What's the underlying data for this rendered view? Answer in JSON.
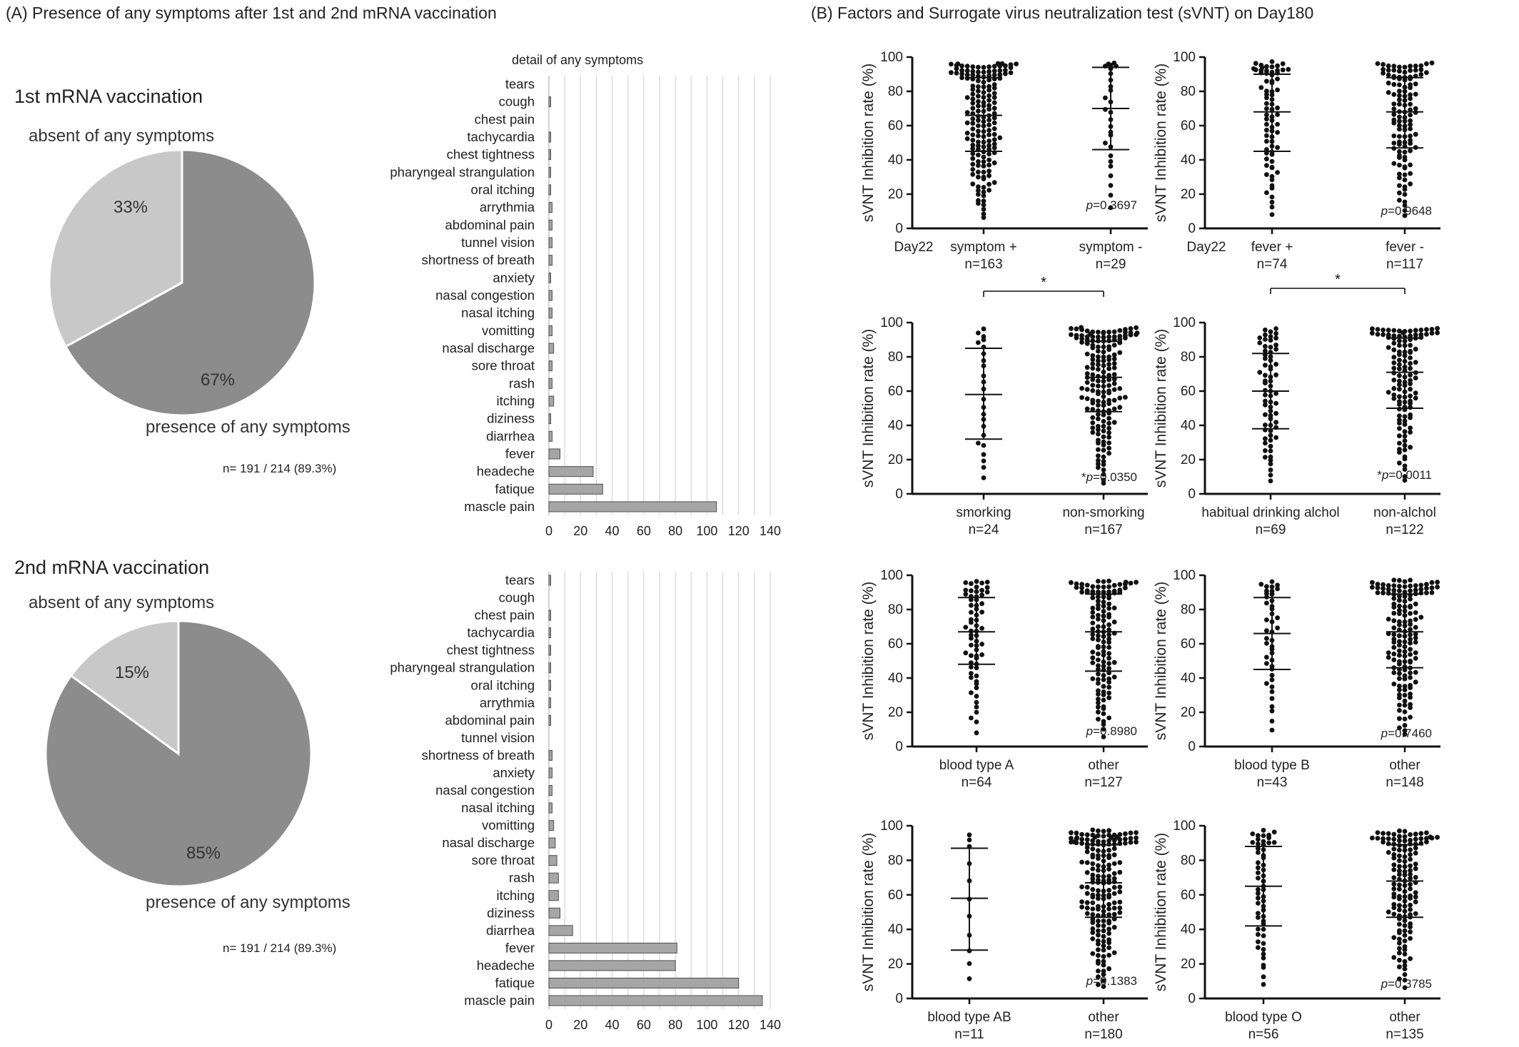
{
  "panel_a": {
    "heading": "(A)   Presence of any symptoms after 1st and 2nd mRNA vaccination",
    "first": {
      "title": "1st mRNA vaccination",
      "absent_label": "absent of any symptoms",
      "present_label": "presence of any symptoms",
      "absent_pct": "33%",
      "present_pct": "67%",
      "n_text": "n= 191 / 214  (89.3%)"
    },
    "second": {
      "title": "2nd mRNA vaccination",
      "absent_label": "absent of any symptoms",
      "present_label": "presence of any symptoms",
      "absent_pct": "15%",
      "present_pct": "85%",
      "n_text": "n= 191 / 214  (89.3%)"
    }
  },
  "panel_b": {
    "heading": "(B)   Factors and Surrogate virus neutralization test (sVNT) on Day180"
  },
  "colors": {
    "pie_present": "#8c8c8c",
    "pie_absent": "#c8c8c8",
    "bar_fill": "#a6a6a6",
    "bar_stroke": "#4d4d4d",
    "grid": "#d9d9d9",
    "dot": "#111111"
  },
  "chart_data": [
    {
      "type": "pie",
      "title": "1st mRNA vaccination",
      "labels": [
        "presence of any symptoms",
        "absent of any symptoms"
      ],
      "values": [
        67,
        33
      ]
    },
    {
      "type": "pie",
      "title": "2nd mRNA vaccination",
      "labels": [
        "presence of any symptoms",
        "absent of any symptoms"
      ],
      "values": [
        85,
        15
      ]
    },
    {
      "type": "bar",
      "orientation": "horizontal",
      "title": "detail of any symptoms",
      "categories": [
        "tears",
        "cough",
        "chest pain",
        "tachycardia",
        "chest tightness",
        "pharyngeal strangulation",
        "oral itching",
        "arrythmia",
        "abdominal pain",
        "tunnel vision",
        "shortness of breath",
        "anxiety",
        "nasal congestion",
        "nasal itching",
        "vomitting",
        "nasal discharge",
        "sore throat",
        "rash",
        "itching",
        "diziness",
        "diarrhea",
        "fever",
        "headeche",
        "fatique",
        "mascle pain"
      ],
      "values": [
        0,
        1,
        0,
        1,
        1,
        1,
        1,
        2,
        2,
        2,
        2,
        1,
        2,
        2,
        2,
        3,
        2,
        2,
        3,
        1,
        2,
        7,
        28,
        34,
        106
      ],
      "xticks": [
        0,
        20,
        40,
        60,
        80,
        100,
        120,
        140
      ],
      "xlim": [
        0,
        140
      ]
    },
    {
      "type": "bar",
      "orientation": "horizontal",
      "title": "",
      "categories": [
        "tears",
        "cough",
        "chest pain",
        "tachycardia",
        "chest tightness",
        "pharyngeal strangulation",
        "oral itching",
        "arrythmia",
        "abdominal pain",
        "tunnel vision",
        "shortness of breath",
        "anxiety",
        "nasal congestion",
        "nasal itching",
        "vomitting",
        "nasal discharge",
        "sore throat",
        "rash",
        "itching",
        "diziness",
        "diarrhea",
        "fever",
        "headeche",
        "fatique",
        "mascle pain"
      ],
      "values": [
        1,
        0,
        1,
        1,
        1,
        1,
        1,
        1,
        1,
        0,
        2,
        2,
        2,
        2,
        3,
        4,
        5,
        6,
        6,
        7,
        15,
        81,
        80,
        120,
        135
      ],
      "xticks": [
        0,
        20,
        40,
        60,
        80,
        100,
        120,
        140
      ],
      "xlim": [
        0,
        140
      ]
    },
    {
      "type": "scatter",
      "ylabel": "sVNT Inhibition rate (%)",
      "ylim": [
        0,
        100
      ],
      "yticks": [
        0,
        20,
        40,
        60,
        80,
        100
      ],
      "groups": [
        {
          "label": "symptom +",
          "n": "n=163",
          "median": 66,
          "q1": 45,
          "q3": 88,
          "count": 163
        },
        {
          "label": "symptom -",
          "n": "n=29",
          "median": 70,
          "q1": 46,
          "q3": 94,
          "count": 29
        }
      ],
      "prefix": "Day22",
      "p_prefix": "",
      "p_value": "p=0.3697",
      "significance": ""
    },
    {
      "type": "scatter",
      "ylabel": "sVNT Inhibition rate (%)",
      "ylim": [
        0,
        100
      ],
      "yticks": [
        0,
        20,
        40,
        60,
        80,
        100
      ],
      "groups": [
        {
          "label": "fever +",
          "n": "n=74",
          "median": 68,
          "q1": 45,
          "q3": 90,
          "count": 74
        },
        {
          "label": "fever -",
          "n": "n=117",
          "median": 68,
          "q1": 47,
          "q3": 88,
          "count": 117
        }
      ],
      "prefix": "Day22",
      "p_prefix": "",
      "p_value": "p=0.9648",
      "significance": ""
    },
    {
      "type": "scatter",
      "ylabel": "sVNT Inhibition rate (%)",
      "ylim": [
        0,
        100
      ],
      "yticks": [
        0,
        20,
        40,
        60,
        80,
        100
      ],
      "groups": [
        {
          "label": "smorking",
          "n": "n=24",
          "median": 58,
          "q1": 32,
          "q3": 85,
          "count": 24
        },
        {
          "label": "non-smorking",
          "n": "n=167",
          "median": 68,
          "q1": 48,
          "q3": 89,
          "count": 167
        }
      ],
      "prefix": "",
      "p_prefix": "*",
      "p_value": "p=0.0350",
      "significance": "*"
    },
    {
      "type": "scatter",
      "ylabel": "sVNT Inhibition rate (%)",
      "ylim": [
        0,
        100
      ],
      "yticks": [
        0,
        20,
        40,
        60,
        80,
        100
      ],
      "groups": [
        {
          "label": "habitual drinking alchol",
          "n": "n=69",
          "median": 60,
          "q1": 38,
          "q3": 82,
          "count": 69
        },
        {
          "label": "non-alchol",
          "n": "n=122",
          "median": 71,
          "q1": 50,
          "q3": 91,
          "count": 122
        }
      ],
      "prefix": "",
      "p_prefix": "*",
      "p_value": "p=0.0011",
      "significance": "*"
    },
    {
      "type": "scatter",
      "ylabel": "sVNT Inhibition rate (%)",
      "ylim": [
        0,
        100
      ],
      "yticks": [
        0,
        20,
        40,
        60,
        80,
        100
      ],
      "groups": [
        {
          "label": "blood type A",
          "n": "n=64",
          "median": 67,
          "q1": 48,
          "q3": 87,
          "count": 64
        },
        {
          "label": "other",
          "n": "n=127",
          "median": 67,
          "q1": 44,
          "q3": 89,
          "count": 127
        }
      ],
      "prefix": "",
      "p_prefix": "",
      "p_value": "p=0.8980",
      "significance": ""
    },
    {
      "type": "scatter",
      "ylabel": "sVNT Inhibition rate (%)",
      "ylim": [
        0,
        100
      ],
      "yticks": [
        0,
        20,
        40,
        60,
        80,
        100
      ],
      "groups": [
        {
          "label": "blood type B",
          "n": "n=43",
          "median": 66,
          "q1": 45,
          "q3": 87,
          "count": 43
        },
        {
          "label": "other",
          "n": "n=148",
          "median": 67,
          "q1": 46,
          "q3": 89,
          "count": 148
        }
      ],
      "prefix": "",
      "p_prefix": "",
      "p_value": "p=0.7460",
      "significance": ""
    },
    {
      "type": "scatter",
      "ylabel": "sVNT Inhibition rate (%)",
      "ylim": [
        0,
        100
      ],
      "yticks": [
        0,
        20,
        40,
        60,
        80,
        100
      ],
      "groups": [
        {
          "label": "blood type AB",
          "n": "n=11",
          "median": 58,
          "q1": 28,
          "q3": 87,
          "count": 11
        },
        {
          "label": "other",
          "n": "n=180",
          "median": 67,
          "q1": 47,
          "q3": 89,
          "count": 180
        }
      ],
      "prefix": "",
      "p_prefix": "",
      "p_value": "p=0.1383",
      "significance": ""
    },
    {
      "type": "scatter",
      "ylabel": "sVNT Inhibition rate (%)",
      "ylim": [
        0,
        100
      ],
      "yticks": [
        0,
        20,
        40,
        60,
        80,
        100
      ],
      "groups": [
        {
          "label": "blood type O",
          "n": "n=56",
          "median": 65,
          "q1": 42,
          "q3": 88,
          "count": 56
        },
        {
          "label": "other",
          "n": "n=135",
          "median": 68,
          "q1": 47,
          "q3": 89,
          "count": 135
        }
      ],
      "prefix": "",
      "p_prefix": "",
      "p_value": "p=0.3785",
      "significance": ""
    }
  ]
}
